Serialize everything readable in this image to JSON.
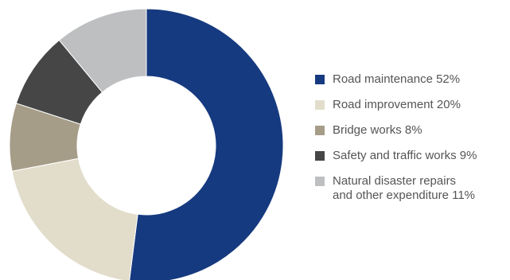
{
  "chart_data": {
    "type": "pie",
    "donut": true,
    "legend_position": "right",
    "slices": [
      {
        "label": "Road maintenance 52%",
        "value": 52,
        "color": "#163A7F"
      },
      {
        "label": "Road improvement 20%",
        "value": 20,
        "color": "#E2DDCB"
      },
      {
        "label": "Bridge works 8%",
        "value": 8,
        "color": "#A59D88"
      },
      {
        "label": "Safety and traffic works 9%",
        "value": 9,
        "color": "#464646"
      },
      {
        "label": "Natural disaster repairs\nand other expenditure 11%",
        "value": 11,
        "color": "#BEBFC1"
      }
    ]
  }
}
